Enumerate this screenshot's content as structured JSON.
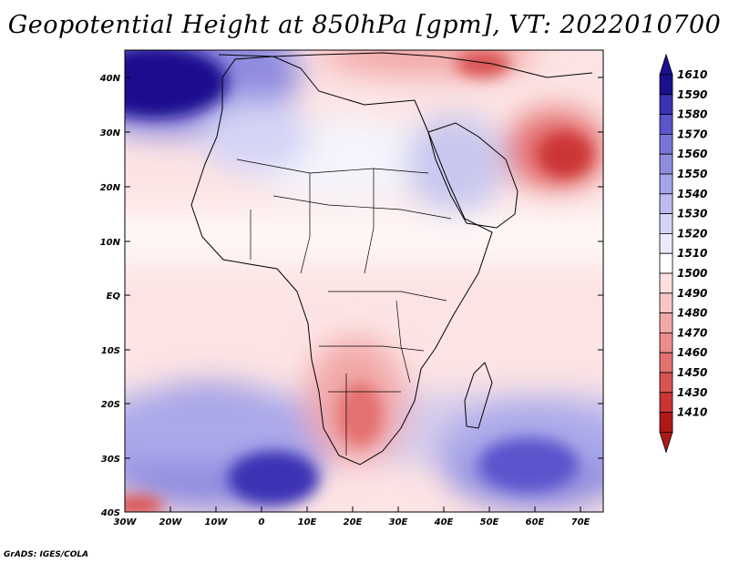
{
  "title": "Geopotential Height at 850hPa [gpm], VT: 2022010700",
  "credit": "GrADS: IGES/COLA",
  "axes": {
    "lat_labels": [
      "40N",
      "30N",
      "20N",
      "10N",
      "EQ",
      "10S",
      "20S",
      "30S",
      "40S"
    ],
    "lon_labels": [
      "30W",
      "20W",
      "10W",
      "0",
      "10E",
      "20E",
      "30E",
      "40E",
      "50E",
      "60E",
      "70E"
    ]
  },
  "colorbar": {
    "levels": [
      "1610",
      "1590",
      "1580",
      "1570",
      "1560",
      "1550",
      "1540",
      "1530",
      "1520",
      "1510",
      "1500",
      "1490",
      "1480",
      "1470",
      "1460",
      "1450",
      "1430",
      "1410"
    ],
    "colors": [
      "#1a0f8f",
      "#3a32b4",
      "#5a55cc",
      "#7a74d8",
      "#8f8ce0",
      "#a6a4e8",
      "#bdbcf0",
      "#d4d4f6",
      "#ebebfb",
      "#ffffff",
      "#fde0e0",
      "#f8c4c4",
      "#f2a8a8",
      "#ec8c8c",
      "#e47070",
      "#d95252",
      "#cc3434",
      "#b01818"
    ]
  },
  "chart_data": {
    "type": "heatmap",
    "title": "Geopotential Height at 850hPa [gpm], VT: 2022010700",
    "variable": "Geopotential Height at 850hPa",
    "units": "gpm",
    "valid_time": "2022010700",
    "lon_range": [
      -30,
      75
    ],
    "lat_range": [
      -40,
      45
    ],
    "levels": [
      1410,
      1430,
      1450,
      1460,
      1470,
      1480,
      1490,
      1500,
      1510,
      1520,
      1530,
      1540,
      1550,
      1560,
      1570,
      1580,
      1590,
      1610
    ],
    "features": [
      {
        "region": "North Atlantic (NW corner)",
        "value_range": [
          1590,
          1610
        ]
      },
      {
        "region": "Southern Ocean / South Atlantic",
        "value_range": [
          1550,
          1580
        ]
      },
      {
        "region": "South Indian Ocean",
        "value_range": [
          1550,
          1570
        ]
      },
      {
        "region": "Southern Africa (Kalahari)",
        "value_range": [
          1460,
          1480
        ]
      },
      {
        "region": "Iran / Pakistan",
        "value_range": [
          1430,
          1460
        ]
      },
      {
        "region": "Tropics / Equatorial belt",
        "value_range": [
          1490,
          1510
        ]
      }
    ]
  }
}
